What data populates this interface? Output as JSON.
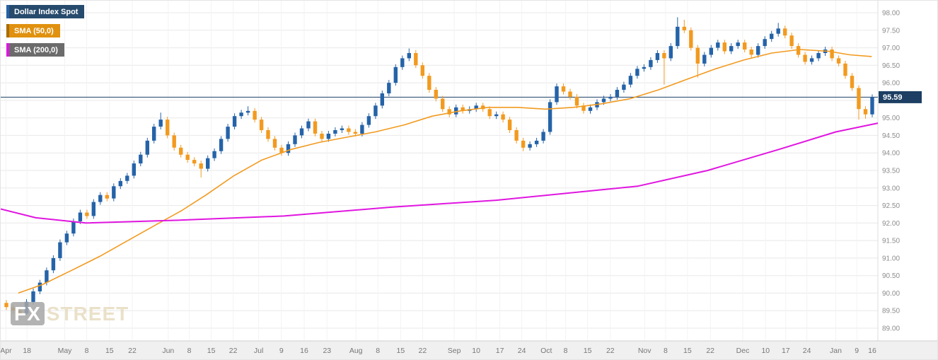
{
  "chart": {
    "legend": [
      {
        "label": "Dollar Index Spot",
        "color": "#2563a8"
      },
      {
        "label": "SMA (50,0)",
        "color": "#f29a1f"
      },
      {
        "label": "SMA (200,0)",
        "color": "#e016e0"
      }
    ],
    "last_price_label": "95.59"
  },
  "watermark": {
    "fx": "FX",
    "street": "STREET"
  },
  "chart_data": {
    "type": "candlestick",
    "title": "Dollar Index Spot",
    "grid": true,
    "legend_position": "top-left",
    "colors": {
      "up": "#2563a8",
      "down": "#f29a1f",
      "last_price_line": "#1c3f63"
    },
    "last_price": 95.59,
    "y_axis": {
      "min": 89.0,
      "max": 98.0,
      "tick_step": 0.5,
      "side": "right",
      "ticks": [
        "98.00",
        "97.50",
        "97.00",
        "96.50",
        "96.00",
        "95.50",
        "95.00",
        "94.50",
        "94.00",
        "93.50",
        "93.00",
        "92.50",
        "92.00",
        "91.50",
        "91.00",
        "90.50",
        "90.00",
        "89.50",
        "89.00"
      ]
    },
    "x_ticks": [
      {
        "label": "Apr",
        "pos": 0.006
      },
      {
        "label": "18",
        "pos": 0.03
      },
      {
        "label": "May",
        "pos": 0.073
      },
      {
        "label": "8",
        "pos": 0.098
      },
      {
        "label": "15",
        "pos": 0.124
      },
      {
        "label": "22",
        "pos": 0.15
      },
      {
        "label": "Jun",
        "pos": 0.191
      },
      {
        "label": "8",
        "pos": 0.215
      },
      {
        "label": "15",
        "pos": 0.24
      },
      {
        "label": "22",
        "pos": 0.265
      },
      {
        "label": "Jul",
        "pos": 0.294
      },
      {
        "label": "9",
        "pos": 0.32
      },
      {
        "label": "16",
        "pos": 0.346
      },
      {
        "label": "23",
        "pos": 0.372
      },
      {
        "label": "Aug",
        "pos": 0.405
      },
      {
        "label": "8",
        "pos": 0.43
      },
      {
        "label": "15",
        "pos": 0.456
      },
      {
        "label": "22",
        "pos": 0.481
      },
      {
        "label": "Sep",
        "pos": 0.517
      },
      {
        "label": "10",
        "pos": 0.542
      },
      {
        "label": "17",
        "pos": 0.569
      },
      {
        "label": "24",
        "pos": 0.594
      },
      {
        "label": "Oct",
        "pos": 0.622
      },
      {
        "label": "8",
        "pos": 0.644
      },
      {
        "label": "15",
        "pos": 0.669
      },
      {
        "label": "22",
        "pos": 0.695
      },
      {
        "label": "Nov",
        "pos": 0.734
      },
      {
        "label": "8",
        "pos": 0.758
      },
      {
        "label": "15",
        "pos": 0.783
      },
      {
        "label": "22",
        "pos": 0.809
      },
      {
        "label": "Dec",
        "pos": 0.846
      },
      {
        "label": "10",
        "pos": 0.872
      },
      {
        "label": "17",
        "pos": 0.895
      },
      {
        "label": "24",
        "pos": 0.919
      },
      {
        "label": "Jan",
        "pos": 0.952
      },
      {
        "label": "9",
        "pos": 0.976
      },
      {
        "label": "16",
        "pos": 1.0
      }
    ],
    "ohlc": [
      [
        89.72,
        89.8,
        89.52,
        89.6
      ],
      [
        89.6,
        89.68,
        89.42,
        89.5
      ],
      [
        89.5,
        89.58,
        89.4,
        89.42
      ],
      [
        89.42,
        89.83,
        89.38,
        89.75
      ],
      [
        89.75,
        90.13,
        89.67,
        90.05
      ],
      [
        90.05,
        90.38,
        89.97,
        90.3
      ],
      [
        90.3,
        90.73,
        90.22,
        90.65
      ],
      [
        90.65,
        91.08,
        90.57,
        91.0
      ],
      [
        91.0,
        91.53,
        90.92,
        91.45
      ],
      [
        91.45,
        91.78,
        91.37,
        91.7
      ],
      [
        91.7,
        92.13,
        91.62,
        92.05
      ],
      [
        92.05,
        92.38,
        91.97,
        92.3
      ],
      [
        92.3,
        92.38,
        92.12,
        92.2
      ],
      [
        92.2,
        92.68,
        92.12,
        92.6
      ],
      [
        92.6,
        92.88,
        92.52,
        92.8
      ],
      [
        92.8,
        92.88,
        92.62,
        92.7
      ],
      [
        92.7,
        93.13,
        92.62,
        93.05
      ],
      [
        93.05,
        93.28,
        92.97,
        93.2
      ],
      [
        93.2,
        93.43,
        93.12,
        93.35
      ],
      [
        93.35,
        93.78,
        93.27,
        93.7
      ],
      [
        93.7,
        94.03,
        93.62,
        93.95
      ],
      [
        93.95,
        94.43,
        93.87,
        94.35
      ],
      [
        94.35,
        94.83,
        94.27,
        94.75
      ],
      [
        94.75,
        95.15,
        94.67,
        94.95
      ],
      [
        94.95,
        95.03,
        94.42,
        94.5
      ],
      [
        94.5,
        94.58,
        94.07,
        94.15
      ],
      [
        94.15,
        94.23,
        93.87,
        93.95
      ],
      [
        93.95,
        94.03,
        93.72,
        93.8
      ],
      [
        93.8,
        93.88,
        93.62,
        93.7
      ],
      [
        93.7,
        93.78,
        93.3,
        93.55
      ],
      [
        93.55,
        93.93,
        93.47,
        93.85
      ],
      [
        93.85,
        94.13,
        93.77,
        94.05
      ],
      [
        94.05,
        94.48,
        93.97,
        94.4
      ],
      [
        94.4,
        94.83,
        94.32,
        94.75
      ],
      [
        94.75,
        95.13,
        94.67,
        95.05
      ],
      [
        95.05,
        95.23,
        94.97,
        95.15
      ],
      [
        95.15,
        95.33,
        95.07,
        95.2
      ],
      [
        95.2,
        95.28,
        94.87,
        94.95
      ],
      [
        94.95,
        95.03,
        94.57,
        94.65
      ],
      [
        94.65,
        94.73,
        94.32,
        94.4
      ],
      [
        94.4,
        94.48,
        94.07,
        94.15
      ],
      [
        94.15,
        94.23,
        93.92,
        94.0
      ],
      [
        94.0,
        94.33,
        93.92,
        94.25
      ],
      [
        94.25,
        94.58,
        94.17,
        94.5
      ],
      [
        94.5,
        94.78,
        94.42,
        94.7
      ],
      [
        94.7,
        94.98,
        94.62,
        94.9
      ],
      [
        94.9,
        94.98,
        94.47,
        94.55
      ],
      [
        94.55,
        94.63,
        94.32,
        94.4
      ],
      [
        94.4,
        94.63,
        94.32,
        94.55
      ],
      [
        94.55,
        94.73,
        94.47,
        94.65
      ],
      [
        94.65,
        94.78,
        94.57,
        94.7
      ],
      [
        94.7,
        94.78,
        94.52,
        94.6
      ],
      [
        94.6,
        94.68,
        94.47,
        94.55
      ],
      [
        94.55,
        94.88,
        94.47,
        94.8
      ],
      [
        94.8,
        95.13,
        94.72,
        95.05
      ],
      [
        95.05,
        95.43,
        94.97,
        95.35
      ],
      [
        95.35,
        95.78,
        95.27,
        95.7
      ],
      [
        95.7,
        96.08,
        95.62,
        96.0
      ],
      [
        96.0,
        96.53,
        95.92,
        96.45
      ],
      [
        96.45,
        96.78,
        96.37,
        96.7
      ],
      [
        96.7,
        96.98,
        96.62,
        96.85
      ],
      [
        96.85,
        96.93,
        96.42,
        96.5
      ],
      [
        96.5,
        96.58,
        96.12,
        96.2
      ],
      [
        96.2,
        96.28,
        95.72,
        95.8
      ],
      [
        95.8,
        95.88,
        95.47,
        95.55
      ],
      [
        95.55,
        95.63,
        95.17,
        95.25
      ],
      [
        95.25,
        95.33,
        95.02,
        95.1
      ],
      [
        95.1,
        95.38,
        95.02,
        95.3
      ],
      [
        95.3,
        95.38,
        95.12,
        95.2
      ],
      [
        95.2,
        95.33,
        95.12,
        95.25
      ],
      [
        95.25,
        95.43,
        95.17,
        95.35
      ],
      [
        95.35,
        95.43,
        95.17,
        95.25
      ],
      [
        95.25,
        95.33,
        94.97,
        95.05
      ],
      [
        95.05,
        95.18,
        94.97,
        95.1
      ],
      [
        95.1,
        95.18,
        94.87,
        94.95
      ],
      [
        94.95,
        95.03,
        94.57,
        94.65
      ],
      [
        94.65,
        94.73,
        94.27,
        94.35
      ],
      [
        94.35,
        94.43,
        94.05,
        94.15
      ],
      [
        94.15,
        94.33,
        94.07,
        94.25
      ],
      [
        94.25,
        94.43,
        94.17,
        94.35
      ],
      [
        94.35,
        94.68,
        94.27,
        94.6
      ],
      [
        94.6,
        95.53,
        94.52,
        95.45
      ],
      [
        95.45,
        95.98,
        95.37,
        95.9
      ],
      [
        95.9,
        95.98,
        95.67,
        95.75
      ],
      [
        95.75,
        95.83,
        95.52,
        95.6
      ],
      [
        95.6,
        95.68,
        95.27,
        95.35
      ],
      [
        95.35,
        95.43,
        95.12,
        95.2
      ],
      [
        95.2,
        95.38,
        95.12,
        95.3
      ],
      [
        95.3,
        95.53,
        95.22,
        95.45
      ],
      [
        95.45,
        95.63,
        95.37,
        95.55
      ],
      [
        95.55,
        95.68,
        95.47,
        95.6
      ],
      [
        95.6,
        95.88,
        95.52,
        95.8
      ],
      [
        95.8,
        96.03,
        95.72,
        95.95
      ],
      [
        95.95,
        96.28,
        95.87,
        96.2
      ],
      [
        96.2,
        96.48,
        96.12,
        96.4
      ],
      [
        96.4,
        96.53,
        96.32,
        96.45
      ],
      [
        96.45,
        96.73,
        96.37,
        96.65
      ],
      [
        96.65,
        96.93,
        96.57,
        96.85
      ],
      [
        96.85,
        96.93,
        95.95,
        96.7
      ],
      [
        96.7,
        97.13,
        96.62,
        97.05
      ],
      [
        97.05,
        97.87,
        96.97,
        97.6
      ],
      [
        97.6,
        97.8,
        97.42,
        97.5
      ],
      [
        97.5,
        97.58,
        96.92,
        97.0
      ],
      [
        97.0,
        97.08,
        96.15,
        96.55
      ],
      [
        96.55,
        96.88,
        96.47,
        96.8
      ],
      [
        96.8,
        97.08,
        96.72,
        97.0
      ],
      [
        97.0,
        97.23,
        96.92,
        97.15
      ],
      [
        97.15,
        97.23,
        96.82,
        96.9
      ],
      [
        96.9,
        97.13,
        96.82,
        97.05
      ],
      [
        97.05,
        97.23,
        96.97,
        97.15
      ],
      [
        97.15,
        97.23,
        96.87,
        96.95
      ],
      [
        96.95,
        97.03,
        96.72,
        96.8
      ],
      [
        96.8,
        97.13,
        96.72,
        97.05
      ],
      [
        97.05,
        97.33,
        96.97,
        97.25
      ],
      [
        97.25,
        97.48,
        97.17,
        97.4
      ],
      [
        97.4,
        97.71,
        97.32,
        97.55
      ],
      [
        97.55,
        97.63,
        97.27,
        97.35
      ],
      [
        97.35,
        97.43,
        96.97,
        97.05
      ],
      [
        97.05,
        97.13,
        96.72,
        96.8
      ],
      [
        96.8,
        96.88,
        96.52,
        96.6
      ],
      [
        96.6,
        96.78,
        96.52,
        96.7
      ],
      [
        96.7,
        96.93,
        96.62,
        96.85
      ],
      [
        96.85,
        97.03,
        96.77,
        96.95
      ],
      [
        96.95,
        97.03,
        96.62,
        96.7
      ],
      [
        96.7,
        96.78,
        96.47,
        96.55
      ],
      [
        96.55,
        96.63,
        96.12,
        96.2
      ],
      [
        96.2,
        96.28,
        95.77,
        95.85
      ],
      [
        95.85,
        95.93,
        94.95,
        95.25
      ],
      [
        95.25,
        95.33,
        94.98,
        95.1
      ],
      [
        95.1,
        95.67,
        95.02,
        95.59
      ]
    ],
    "series": [
      {
        "name": "SMA (50,0)",
        "color": "#f29a1f",
        "points": [
          [
            0.02,
            90.0
          ],
          [
            0.048,
            90.25
          ],
          [
            0.081,
            90.65
          ],
          [
            0.113,
            91.05
          ],
          [
            0.145,
            91.5
          ],
          [
            0.177,
            91.95
          ],
          [
            0.206,
            92.35
          ],
          [
            0.234,
            92.8
          ],
          [
            0.266,
            93.35
          ],
          [
            0.298,
            93.8
          ],
          [
            0.331,
            94.1
          ],
          [
            0.363,
            94.3
          ],
          [
            0.395,
            94.45
          ],
          [
            0.427,
            94.6
          ],
          [
            0.46,
            94.8
          ],
          [
            0.492,
            95.05
          ],
          [
            0.524,
            95.2
          ],
          [
            0.556,
            95.3
          ],
          [
            0.589,
            95.3
          ],
          [
            0.621,
            95.25
          ],
          [
            0.653,
            95.3
          ],
          [
            0.685,
            95.4
          ],
          [
            0.718,
            95.55
          ],
          [
            0.75,
            95.8
          ],
          [
            0.782,
            96.1
          ],
          [
            0.815,
            96.4
          ],
          [
            0.847,
            96.65
          ],
          [
            0.879,
            96.85
          ],
          [
            0.911,
            96.95
          ],
          [
            0.944,
            96.9
          ],
          [
            0.968,
            96.8
          ],
          [
            0.993,
            96.75
          ]
        ]
      },
      {
        "name": "SMA (200,0)",
        "color": "#e016e0",
        "points": [
          [
            0.0,
            92.4
          ],
          [
            0.04,
            92.15
          ],
          [
            0.097,
            92.0
          ],
          [
            0.202,
            92.08
          ],
          [
            0.323,
            92.2
          ],
          [
            0.444,
            92.45
          ],
          [
            0.565,
            92.65
          ],
          [
            0.645,
            92.85
          ],
          [
            0.726,
            93.05
          ],
          [
            0.806,
            93.5
          ],
          [
            0.887,
            94.1
          ],
          [
            0.952,
            94.6
          ],
          [
            1.0,
            94.85
          ]
        ]
      }
    ]
  }
}
